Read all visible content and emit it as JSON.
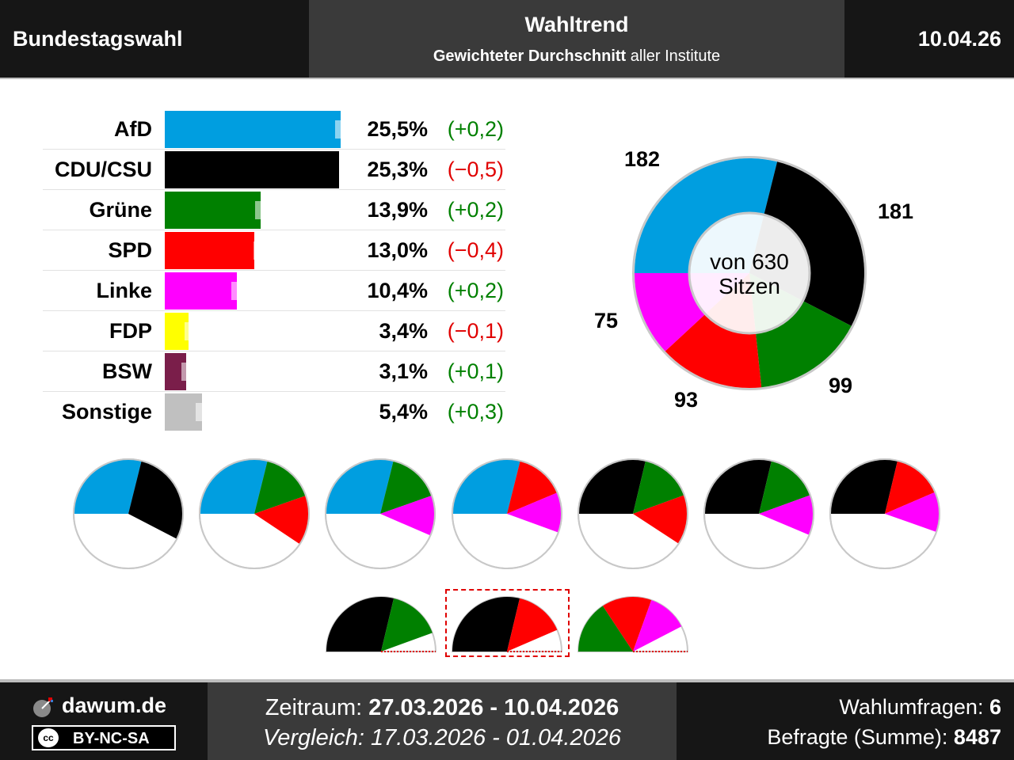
{
  "header": {
    "election": "Bundestagswahl",
    "title": "Wahltrend",
    "subtitle_bold": "Gewichteter Durchschnitt",
    "subtitle_rest": " aller Institute",
    "date": "10.04.26"
  },
  "chart_data": [
    {
      "type": "bar",
      "categories": [
        "AfD",
        "CDU/CSU",
        "Grüne",
        "SPD",
        "Linke",
        "FDP",
        "BSW",
        "Sonstige"
      ],
      "series": [
        {
          "name": "",
          "values": [
            25.5,
            25.3,
            13.9,
            13.0,
            10.4,
            3.4,
            3.1,
            5.4
          ]
        }
      ],
      "previous": [
        25.3,
        25.8,
        13.7,
        13.4,
        10.2,
        3.5,
        3.0,
        5.1
      ],
      "value_labels": [
        "25,5%",
        "25,3%",
        "13,9%",
        "13,0%",
        "10,4%",
        "3,4%",
        "3,1%",
        "5,4%"
      ],
      "change_labels": [
        "(+0,2)",
        "(−0,5)",
        "(+0,2)",
        "(−0,4)",
        "(+0,2)",
        "(−0,1)",
        "(+0,1)",
        "(+0,3)"
      ],
      "change_direction": [
        "up",
        "down",
        "up",
        "down",
        "up",
        "down",
        "up",
        "up"
      ],
      "colors": [
        "#009ee0",
        "#000000",
        "#008000",
        "#ff0000",
        "#ff00ff",
        "#ffff00",
        "#7a1e4a",
        "#c0c0c0"
      ],
      "xlim": [
        0,
        25.5
      ]
    },
    {
      "type": "pie",
      "categories": [
        "AfD",
        "CDU/CSU",
        "Grüne",
        "SPD",
        "Linke"
      ],
      "values": [
        182,
        181,
        99,
        93,
        75
      ],
      "value_labels": [
        "182",
        "181",
        "99",
        "93",
        "75"
      ],
      "colors": [
        "#009ee0",
        "#000000",
        "#008000",
        "#ff0000",
        "#ff00ff"
      ],
      "center_label": [
        "von 630",
        "Sitzen"
      ]
    }
  ],
  "coalitions": [
    {
      "parties": [
        "AfD",
        "CDU/CSU"
      ],
      "seats": [
        182,
        181
      ]
    },
    {
      "parties": [
        "AfD",
        "Grüne",
        "SPD"
      ],
      "seats": [
        182,
        99,
        93
      ]
    },
    {
      "parties": [
        "AfD",
        "Grüne",
        "Linke"
      ],
      "seats": [
        182,
        99,
        75
      ]
    },
    {
      "parties": [
        "AfD",
        "SPD",
        "Linke"
      ],
      "seats": [
        182,
        93,
        75
      ]
    },
    {
      "parties": [
        "CDU/CSU",
        "Grüne",
        "SPD"
      ],
      "seats": [
        181,
        99,
        93
      ]
    },
    {
      "parties": [
        "CDU/CSU",
        "Grüne",
        "Linke"
      ],
      "seats": [
        181,
        99,
        75
      ]
    },
    {
      "parties": [
        "CDU/CSU",
        "SPD",
        "Linke"
      ],
      "seats": [
        181,
        93,
        75
      ]
    },
    {
      "parties": [
        "CDU/CSU",
        "Grüne"
      ],
      "seats": [
        181,
        99
      ]
    },
    {
      "parties": [
        "CDU/CSU",
        "SPD"
      ],
      "seats": [
        181,
        93
      ],
      "highlighted": true
    },
    {
      "parties": [
        "Grüne",
        "SPD",
        "Linke"
      ],
      "seats": [
        99,
        93,
        75
      ]
    }
  ],
  "total_seats": 630,
  "footer": {
    "site": "dawum.de",
    "license": "BY-NC-SA",
    "cc": "cc",
    "period_label": "Zeitraum: ",
    "period_value": "27.03.2026 - 10.04.2026",
    "compare": "Vergleich: 17.03.2026 - 01.04.2026",
    "polls_label": "Wahlumfragen: ",
    "polls_value": "6",
    "resp_label": "Befragte (Summe): ",
    "resp_value": "8487"
  }
}
